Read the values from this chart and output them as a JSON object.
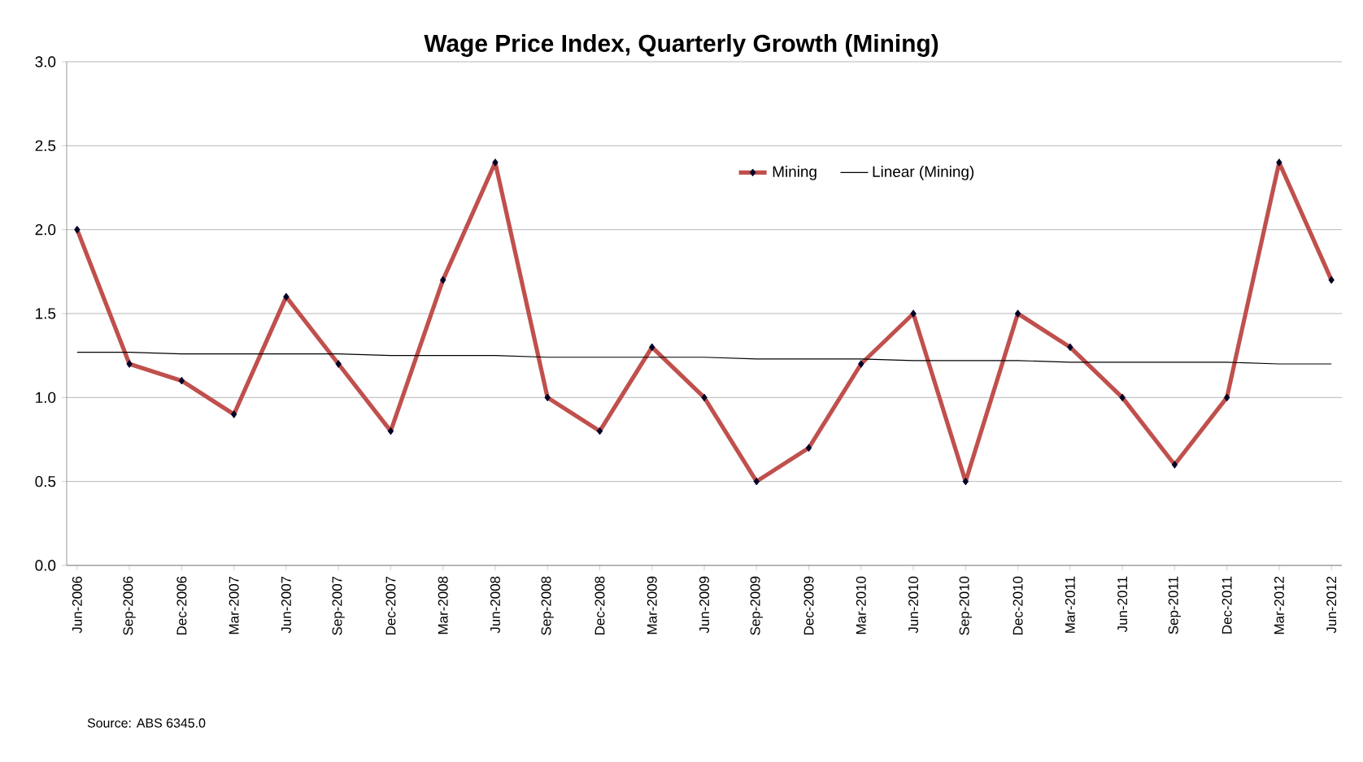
{
  "chart_data": {
    "type": "line",
    "title": "Wage Price Index, Quarterly Growth (Mining)",
    "categories": [
      "Jun-2006",
      "Sep-2006",
      "Dec-2006",
      "Mar-2007",
      "Jun-2007",
      "Sep-2007",
      "Dec-2007",
      "Mar-2008",
      "Jun-2008",
      "Sep-2008",
      "Dec-2008",
      "Mar-2009",
      "Jun-2009",
      "Sep-2009",
      "Dec-2009",
      "Mar-2010",
      "Jun-2010",
      "Sep-2010",
      "Dec-2010",
      "Mar-2011",
      "Jun-2011",
      "Sep-2011",
      "Dec-2011",
      "Mar-2012",
      "Jun-2012"
    ],
    "series": [
      {
        "name": "Mining",
        "color": "#c0504d",
        "marker": "diamond",
        "values": [
          2.0,
          1.2,
          1.1,
          0.9,
          1.6,
          1.2,
          0.8,
          1.7,
          2.4,
          1.0,
          0.8,
          1.3,
          1.0,
          0.5,
          0.7,
          1.2,
          1.5,
          0.5,
          1.5,
          1.3,
          1.0,
          0.6,
          1.0,
          2.4,
          1.7
        ]
      },
      {
        "name": "Linear (Mining)",
        "color": "#000000",
        "marker": "none",
        "values": [
          1.27,
          1.27,
          1.26,
          1.26,
          1.26,
          1.26,
          1.25,
          1.25,
          1.25,
          1.24,
          1.24,
          1.24,
          1.24,
          1.23,
          1.23,
          1.23,
          1.22,
          1.22,
          1.22,
          1.21,
          1.21,
          1.21,
          1.21,
          1.2,
          1.2
        ]
      }
    ],
    "ylim": [
      0,
      3
    ],
    "yticks": [
      {
        "value": 0,
        "label": "0.0"
      },
      {
        "value": 0.5,
        "label": "0.5"
      },
      {
        "value": 1,
        "label": "1.0"
      },
      {
        "value": 1.5,
        "label": "1.5"
      },
      {
        "value": 2,
        "label": "2.0"
      },
      {
        "value": 2.5,
        "label": "2.5"
      },
      {
        "value": 3,
        "label": "3.0"
      }
    ],
    "grid": "y",
    "legend": "top",
    "annotations": [
      "Source: ABS 6345.0"
    ]
  }
}
